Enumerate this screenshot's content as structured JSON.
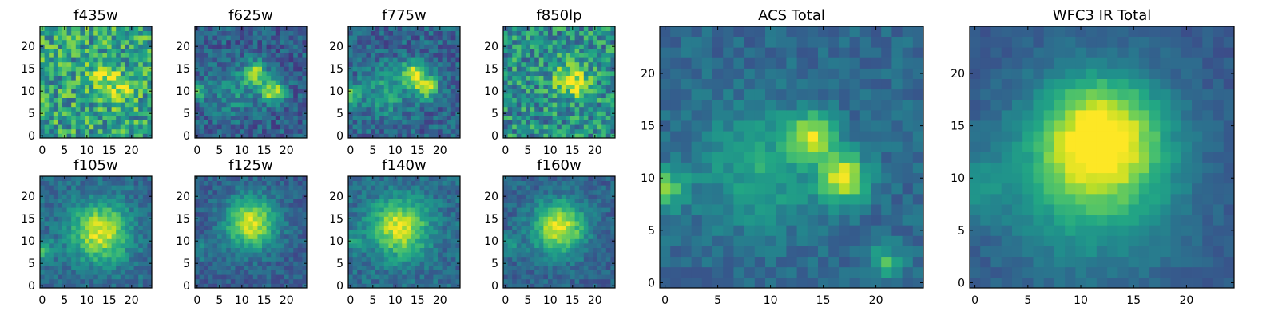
{
  "chart_data": {
    "type": "heatmap",
    "colormap": "viridis",
    "grid": false,
    "panels": [
      {
        "title": "f435w",
        "size": 25,
        "xticks": [
          0,
          5,
          10,
          15,
          20
        ],
        "yticks": [
          0,
          5,
          10,
          15,
          20
        ],
        "blobs": [
          {
            "x": 14,
            "y": 14,
            "amp": 0.35,
            "s": 2.2
          },
          {
            "x": 17,
            "y": 10,
            "amp": 0.3,
            "s": 2.0
          }
        ],
        "base": 0.58,
        "noise": 0.55,
        "seed": 11
      },
      {
        "title": "f625w",
        "size": 25,
        "xticks": [
          0,
          5,
          10,
          15,
          20
        ],
        "yticks": [
          0,
          5,
          10,
          15,
          20
        ],
        "blobs": [
          {
            "x": 13,
            "y": 14,
            "amp": 0.55,
            "s": 1.8
          },
          {
            "x": 17,
            "y": 10,
            "amp": 0.6,
            "s": 1.8
          },
          {
            "x": 8,
            "y": 10,
            "amp": 0.2,
            "s": 4.0
          },
          {
            "x": 0,
            "y": 10,
            "amp": 0.35,
            "s": 1.5
          }
        ],
        "base": 0.3,
        "noise": 0.3,
        "seed": 23
      },
      {
        "title": "f775w",
        "size": 25,
        "xticks": [
          0,
          5,
          10,
          15,
          20
        ],
        "yticks": [
          0,
          5,
          10,
          15,
          20
        ],
        "blobs": [
          {
            "x": 14,
            "y": 14,
            "amp": 0.55,
            "s": 1.8
          },
          {
            "x": 17,
            "y": 11,
            "amp": 0.6,
            "s": 1.8
          },
          {
            "x": 8,
            "y": 10,
            "amp": 0.25,
            "s": 4.0
          },
          {
            "x": 0,
            "y": 9,
            "amp": 0.4,
            "s": 1.5
          }
        ],
        "base": 0.32,
        "noise": 0.3,
        "seed": 37
      },
      {
        "title": "f850lp",
        "size": 25,
        "xticks": [
          0,
          5,
          10,
          15,
          20
        ],
        "yticks": [
          0,
          5,
          10,
          15,
          20
        ],
        "blobs": [
          {
            "x": 14,
            "y": 13,
            "amp": 0.4,
            "s": 2.5
          },
          {
            "x": 17,
            "y": 11,
            "amp": 0.3,
            "s": 2.0
          }
        ],
        "base": 0.5,
        "noise": 0.5,
        "seed": 41
      },
      {
        "title": "f105w",
        "size": 25,
        "xticks": [
          0,
          5,
          10,
          15,
          20
        ],
        "yticks": [
          0,
          5,
          10,
          15,
          20
        ],
        "blobs": [
          {
            "x": 13,
            "y": 12,
            "amp": 0.6,
            "s": 4.5
          },
          {
            "x": 0,
            "y": 8,
            "amp": 0.3,
            "s": 1.6
          }
        ],
        "base": 0.35,
        "noise": 0.22,
        "seed": 53
      },
      {
        "title": "f125w",
        "size": 25,
        "xticks": [
          0,
          5,
          10,
          15,
          20
        ],
        "yticks": [
          0,
          5,
          10,
          15,
          20
        ],
        "blobs": [
          {
            "x": 12,
            "y": 14,
            "amp": 0.65,
            "s": 4.0
          },
          {
            "x": 0,
            "y": 8,
            "amp": 0.2,
            "s": 1.6
          }
        ],
        "base": 0.3,
        "noise": 0.2,
        "seed": 67
      },
      {
        "title": "f140w",
        "size": 25,
        "xticks": [
          0,
          5,
          10,
          15,
          20
        ],
        "yticks": [
          0,
          5,
          10,
          15,
          20
        ],
        "blobs": [
          {
            "x": 11,
            "y": 13,
            "amp": 0.6,
            "s": 4.5
          },
          {
            "x": 0,
            "y": 10,
            "amp": 0.2,
            "s": 1.6
          }
        ],
        "base": 0.35,
        "noise": 0.22,
        "seed": 71
      },
      {
        "title": "f160w",
        "size": 25,
        "xticks": [
          0,
          5,
          10,
          15,
          20
        ],
        "yticks": [
          0,
          5,
          10,
          15,
          20
        ],
        "blobs": [
          {
            "x": 12,
            "y": 13,
            "amp": 0.65,
            "s": 4.0
          },
          {
            "x": 1,
            "y": 9,
            "amp": 0.2,
            "s": 1.6
          }
        ],
        "base": 0.32,
        "noise": 0.2,
        "seed": 83
      },
      {
        "title": "ACS Total",
        "size": 25,
        "xticks": [
          0,
          5,
          10,
          15,
          20
        ],
        "yticks": [
          0,
          5,
          10,
          15,
          20
        ],
        "blobs": [
          {
            "x": 14,
            "y": 14,
            "amp": 0.55,
            "s": 1.5
          },
          {
            "x": 17,
            "y": 10,
            "amp": 0.6,
            "s": 1.6
          },
          {
            "x": 9,
            "y": 11,
            "amp": 0.25,
            "s": 4.0
          },
          {
            "x": 0,
            "y": 9,
            "amp": 0.4,
            "s": 1.4
          },
          {
            "x": 21,
            "y": 2,
            "amp": 0.35,
            "s": 1.1
          }
        ],
        "base": 0.34,
        "noise": 0.16,
        "seed": 97
      },
      {
        "title": "WFC3 IR Total",
        "size": 25,
        "xticks": [
          0,
          5,
          10,
          15,
          20
        ],
        "yticks": [
          0,
          5,
          10,
          15,
          20
        ],
        "blobs": [
          {
            "x": 12,
            "y": 14,
            "amp": 0.6,
            "s": 3.8
          },
          {
            "x": 11,
            "y": 10,
            "amp": 0.35,
            "s": 6.0
          },
          {
            "x": 0,
            "y": 9,
            "amp": 0.2,
            "s": 2.0
          }
        ],
        "base": 0.28,
        "noise": 0.1,
        "seed": 101
      }
    ]
  }
}
